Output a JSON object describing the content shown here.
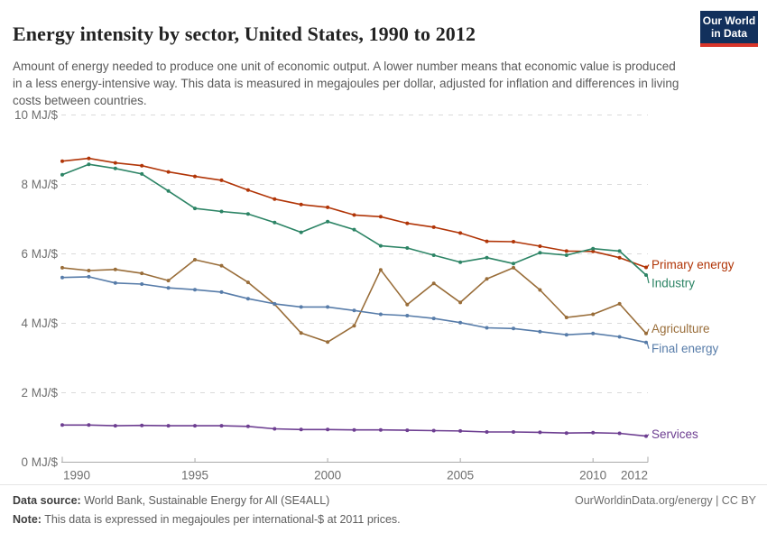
{
  "header": {
    "title": "Energy intensity by sector, United States, 1990 to 2012",
    "subtitle": "Amount of energy needed to produce one unit of economic output. A lower number means that economic value is produced in a less energy-intensive way. This data is measured in megajoules per dollar, adjusted for inflation and differences in living costs between countries.",
    "logo": {
      "line1": "Our World",
      "line2": "in Data",
      "bg_color": "#12305C",
      "accent_color": "#D8352A"
    }
  },
  "chart_data": {
    "type": "line",
    "title": "Energy intensity by sector, United States, 1990 to 2012",
    "unit": "MJ/$",
    "xlabel": "",
    "ylabel": "MJ/$",
    "ylim": [
      0,
      10
    ],
    "grid": "horizontal-dashed",
    "legend_position": "labels-at-line-ends-right",
    "x": [
      1990,
      1991,
      1992,
      1993,
      1994,
      1995,
      1996,
      1997,
      1998,
      1999,
      2000,
      2001,
      2002,
      2003,
      2004,
      2005,
      2006,
      2007,
      2008,
      2009,
      2010,
      2011,
      2012
    ],
    "xticks": [
      1990,
      1995,
      2000,
      2005,
      2010,
      2012
    ],
    "yticks": [
      {
        "value": 0,
        "label": "0 MJ/$"
      },
      {
        "value": 2,
        "label": "2 MJ/$"
      },
      {
        "value": 4,
        "label": "4 MJ/$"
      },
      {
        "value": 6,
        "label": "6 MJ/$"
      },
      {
        "value": 8,
        "label": "8 MJ/$"
      },
      {
        "value": 10,
        "label": "10 MJ/$"
      }
    ],
    "series": [
      {
        "name": "Primary energy",
        "color": "#B13507",
        "values": [
          8.67,
          8.75,
          8.62,
          8.54,
          8.36,
          8.23,
          8.12,
          7.84,
          7.58,
          7.42,
          7.34,
          7.12,
          7.07,
          6.88,
          6.77,
          6.6,
          6.36,
          6.35,
          6.22,
          6.08,
          6.07,
          5.89,
          5.61
        ]
      },
      {
        "name": "Industry",
        "color": "#2C8465",
        "values": [
          8.28,
          8.58,
          8.46,
          8.3,
          7.81,
          7.31,
          7.22,
          7.15,
          6.9,
          6.62,
          6.93,
          6.7,
          6.23,
          6.17,
          5.96,
          5.76,
          5.89,
          5.72,
          6.03,
          5.96,
          6.15,
          6.08,
          5.39
        ]
      },
      {
        "name": "Agriculture",
        "color": "#996D39",
        "values": [
          5.6,
          5.52,
          5.55,
          5.44,
          5.23,
          5.83,
          5.66,
          5.18,
          4.55,
          3.72,
          3.46,
          3.93,
          5.54,
          4.54,
          5.15,
          4.6,
          5.28,
          5.6,
          4.96,
          4.17,
          4.26,
          4.56,
          3.71
        ]
      },
      {
        "name": "Final energy",
        "color": "#577CA9",
        "values": [
          5.32,
          5.34,
          5.16,
          5.13,
          5.02,
          4.97,
          4.9,
          4.71,
          4.56,
          4.47,
          4.47,
          4.37,
          4.26,
          4.22,
          4.14,
          4.02,
          3.87,
          3.85,
          3.76,
          3.67,
          3.71,
          3.61,
          3.45
        ]
      },
      {
        "name": "Services",
        "color": "#6D3E91",
        "values": [
          1.07,
          1.07,
          1.05,
          1.06,
          1.05,
          1.05,
          1.05,
          1.03,
          0.96,
          0.94,
          0.94,
          0.93,
          0.93,
          0.92,
          0.91,
          0.9,
          0.87,
          0.87,
          0.86,
          0.84,
          0.85,
          0.83,
          0.75
        ]
      }
    ]
  },
  "footer": {
    "data_source_label": "Data source:",
    "data_source": " World Bank, Sustainable Energy for All (SE4ALL)",
    "note_label": "Note:",
    "note": " This data is expressed in megajoules per international-$ at 2011 prices.",
    "link": "OurWorldinData.org/energy | CC BY"
  }
}
